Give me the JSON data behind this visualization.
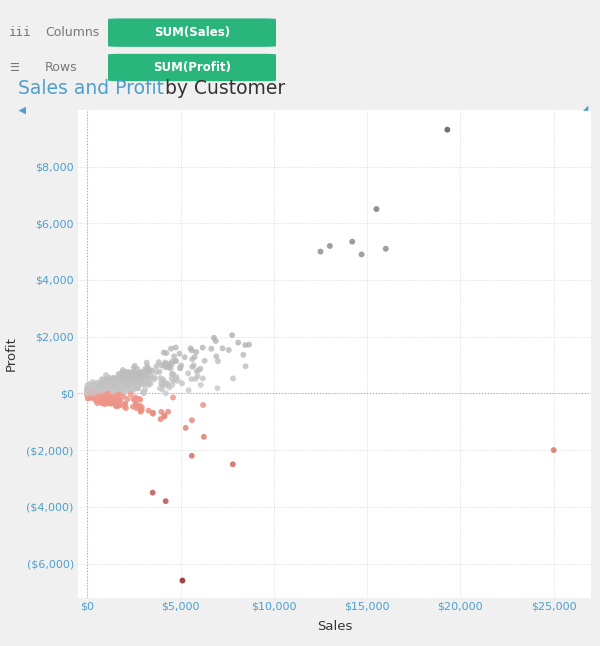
{
  "title_part1": "Sales and Profit",
  "title_part2": " by Customer",
  "xlabel": "Sales",
  "ylabel": "Profit",
  "xlim": [
    -500,
    27000
  ],
  "ylim": [
    -7200,
    10000
  ],
  "xticks": [
    0,
    5000,
    10000,
    15000,
    20000,
    25000
  ],
  "yticks": [
    -6000,
    -4000,
    -2000,
    0,
    2000,
    4000,
    6000,
    8000
  ],
  "grid_color": "#cccccc",
  "bg_color": "#f0f0f0",
  "plot_bg": "#ffffff",
  "columns_label": "Columns",
  "rows_label": "Rows",
  "sum_sales_label": "SUM(Sales)",
  "sum_profit_label": "SUM(Profit)",
  "pill_color": "#2ab57d",
  "pill_text_color": "#ffffff",
  "tick_color": "#4e9fcd",
  "title_color1": "#4e9fcd",
  "title_color2": "#333333"
}
